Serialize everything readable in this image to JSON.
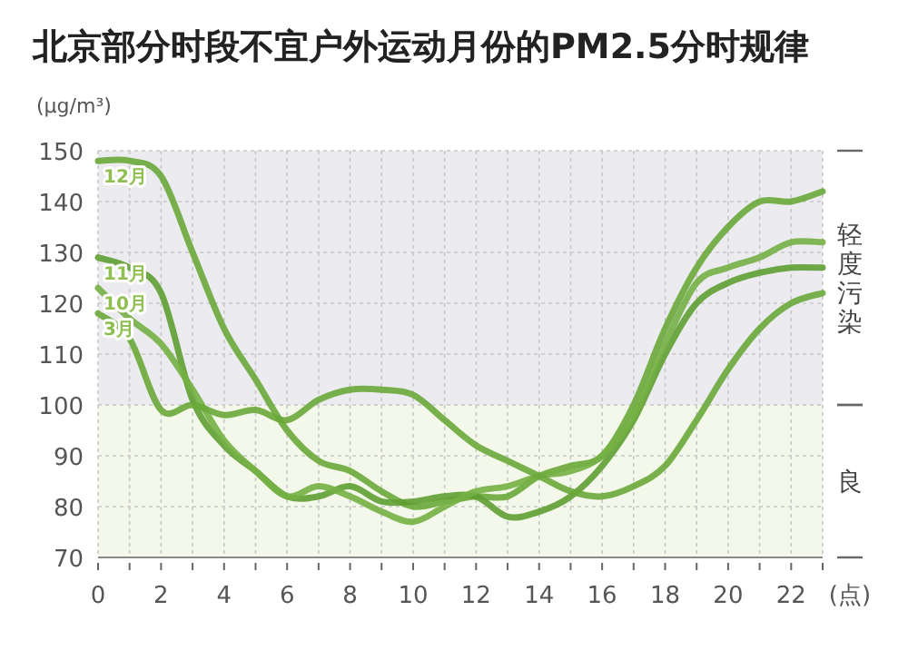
{
  "chart_data": {
    "type": "line",
    "title": "北京部分时段不宜户外运动月份的PM2.5分时规律",
    "ylabel": "(μg/m³)",
    "xlabel": "(点)",
    "x": [
      0,
      1,
      2,
      3,
      4,
      5,
      6,
      7,
      8,
      9,
      10,
      11,
      12,
      13,
      14,
      15,
      16,
      17,
      18,
      19,
      20,
      21,
      22,
      23
    ],
    "series": [
      {
        "name": "12月",
        "color": "#6aa83a",
        "values": [
          148,
          148,
          145,
          130,
          115,
          105,
          95,
          89,
          87,
          83,
          80,
          81,
          82,
          82,
          86,
          88,
          90,
          100,
          115,
          127,
          135,
          140,
          140,
          142
        ]
      },
      {
        "name": "11月",
        "color": "#5f9e32",
        "values": [
          129,
          127,
          122,
          101,
          92,
          87,
          82,
          82,
          84,
          81,
          81,
          82,
          82,
          78,
          79,
          82,
          88,
          97,
          110,
          120,
          124,
          126,
          127,
          127
        ]
      },
      {
        "name": "10月",
        "color": "#74b044",
        "values": [
          123,
          117,
          112,
          103,
          93,
          87,
          82,
          84,
          82,
          79,
          77,
          80,
          83,
          84,
          86,
          87,
          90,
          98,
          112,
          124,
          127,
          129,
          132,
          132
        ]
      },
      {
        "name": "3月",
        "color": "#6aa83a",
        "values": [
          118,
          113,
          99,
          100,
          98,
          99,
          97,
          101,
          103,
          103,
          102,
          97,
          92,
          89,
          86,
          83,
          82,
          84,
          88,
          97,
          107,
          115,
          120,
          122
        ]
      }
    ],
    "xlim": [
      0,
      23
    ],
    "ylim": [
      70,
      150
    ],
    "xticks": [
      0,
      {
        "value": 1,
        "label": null
      },
      2,
      {
        "value": 3,
        "label": null
      },
      4,
      {
        "value": 5,
        "label": null
      },
      6,
      {
        "value": 7,
        "label": null
      },
      8,
      {
        "value": 9,
        "label": null
      },
      10,
      {
        "value": 11,
        "label": null
      },
      12,
      {
        "value": 13,
        "label": null
      },
      14,
      {
        "value": 15,
        "label": null
      },
      16,
      {
        "value": 17,
        "label": null
      },
      18,
      {
        "value": 19,
        "label": null
      },
      20,
      {
        "value": 21,
        "label": null
      },
      22,
      {
        "value": 23,
        "label": null
      }
    ],
    "yticks": [
      70,
      80,
      90,
      100,
      110,
      120,
      130,
      140,
      150
    ],
    "bands": [
      {
        "axis": "y",
        "from": 100,
        "to": 150,
        "label": "轻度污染",
        "color": "#ececf0"
      },
      {
        "axis": "y",
        "from": 70,
        "to": 100,
        "label": "良",
        "color": "#f3f8ea"
      }
    ],
    "grid": true
  }
}
